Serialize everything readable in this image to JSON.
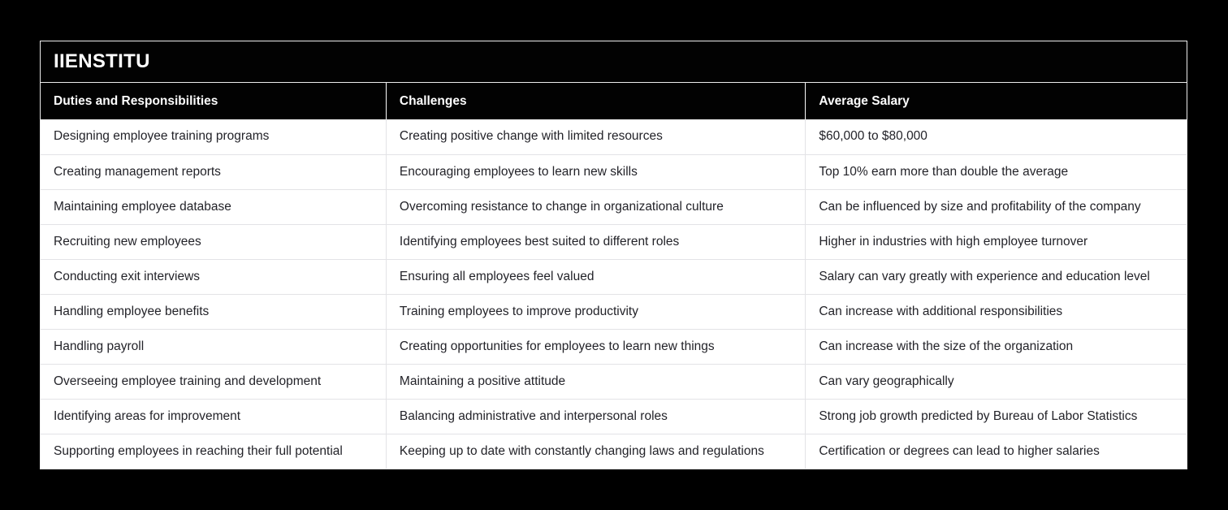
{
  "brand": {
    "title": "IIENSTITU"
  },
  "table": {
    "columns": [
      "Duties and Responsibilities",
      "Challenges",
      "Average Salary"
    ],
    "rows": [
      [
        "Designing employee training programs",
        "Creating positive change with limited resources",
        "$60,000 to $80,000"
      ],
      [
        "Creating management reports",
        "Encouraging employees to learn new skills",
        "Top 10% earn more than double the average"
      ],
      [
        "Maintaining employee database",
        "Overcoming resistance to change in organizational culture",
        "Can be influenced by size and profitability of the company"
      ],
      [
        "Recruiting new employees",
        "Identifying employees best suited to different roles",
        "Higher in industries with high employee turnover"
      ],
      [
        "Conducting exit interviews",
        "Ensuring all employees feel valued",
        "Salary can vary greatly with experience and education level"
      ],
      [
        "Handling employee benefits",
        "Training employees to improve productivity",
        "Can increase with additional responsibilities"
      ],
      [
        "Handling payroll",
        "Creating opportunities for employees to learn new things",
        "Can increase with the size of the organization"
      ],
      [
        "Overseeing employee training and development",
        "Maintaining a positive attitude",
        "Can vary geographically"
      ],
      [
        "Identifying areas for improvement",
        "Balancing administrative and interpersonal roles",
        "Strong job growth predicted by Bureau of Labor Statistics"
      ],
      [
        "Supporting employees in reaching their full potential",
        "Keeping up to date with constantly changing laws and regulations",
        "Certification or degrees can lead to higher salaries"
      ]
    ]
  },
  "colors": {
    "page_bg": "#000000",
    "card_border": "#ededed",
    "header_bg": "#020202",
    "header_text": "#ffffff",
    "body_bg": "#ffffff",
    "body_text": "#232329",
    "divider": "#e3e3e6"
  }
}
